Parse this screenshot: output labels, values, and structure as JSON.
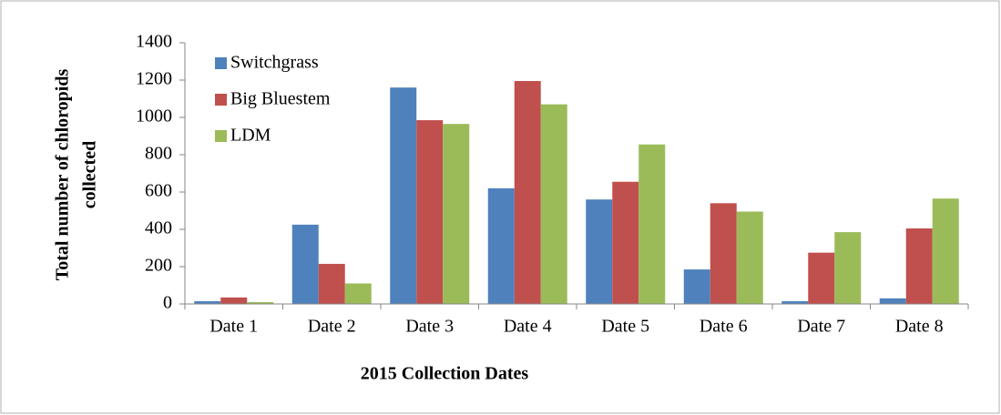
{
  "chart_data": {
    "type": "bar",
    "xlabel": "2015 Collection Dates",
    "ylabel": [
      "Total number of chloropids",
      "collected"
    ],
    "categories": [
      "Date 1",
      "Date 2",
      "Date 3",
      "Date 4",
      "Date 5",
      "Date 6",
      "Date 7",
      "Date 8"
    ],
    "series": [
      {
        "name": "Switchgrass",
        "color": "#4f81bd",
        "values": [
          15,
          425,
          1160,
          620,
          560,
          185,
          15,
          30
        ]
      },
      {
        "name": "Big Bluestem",
        "color": "#c0504d",
        "values": [
          35,
          215,
          985,
          1195,
          655,
          540,
          275,
          405
        ]
      },
      {
        "name": "LDM",
        "color": "#9bbb59",
        "values": [
          10,
          110,
          965,
          1070,
          855,
          495,
          385,
          565
        ]
      }
    ],
    "ylim": [
      0,
      1400
    ],
    "yticks": [
      0,
      200,
      400,
      600,
      800,
      1000,
      1200,
      1400
    ],
    "legend": "upper left",
    "grid": false
  }
}
